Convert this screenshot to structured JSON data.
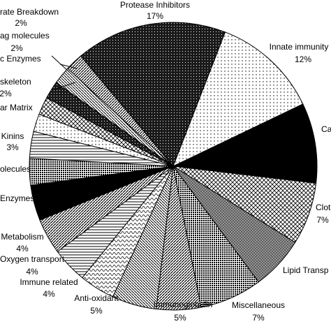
{
  "chart_data": {
    "type": "pie",
    "categories": [
      "Protease Inhibitors",
      "Innate immunity",
      "Ca",
      "Clot",
      "Lipid Transp",
      "Miscellaneous",
      "Immunoglobulin",
      "Anti-oxidant",
      "Immune related",
      "Oxygen transport",
      "Metabolism",
      "Enzymes",
      "olecules",
      "Kinins",
      "ar Matrix",
      "skeleton",
      "c Enzymes",
      "ag molecules",
      "rate Breakdown"
    ],
    "values": [
      17,
      12,
      9,
      7,
      6,
      7,
      5,
      5,
      4,
      4,
      4,
      4,
      3,
      3,
      2,
      2,
      2,
      2,
      2
    ],
    "value_labels": [
      "17%",
      "12%",
      null,
      "7%",
      null,
      "7%",
      "5%",
      "5%",
      "4%",
      "4%",
      "4%",
      null,
      null,
      "3%",
      null,
      "2%",
      null,
      "2%",
      "2%"
    ]
  }
}
